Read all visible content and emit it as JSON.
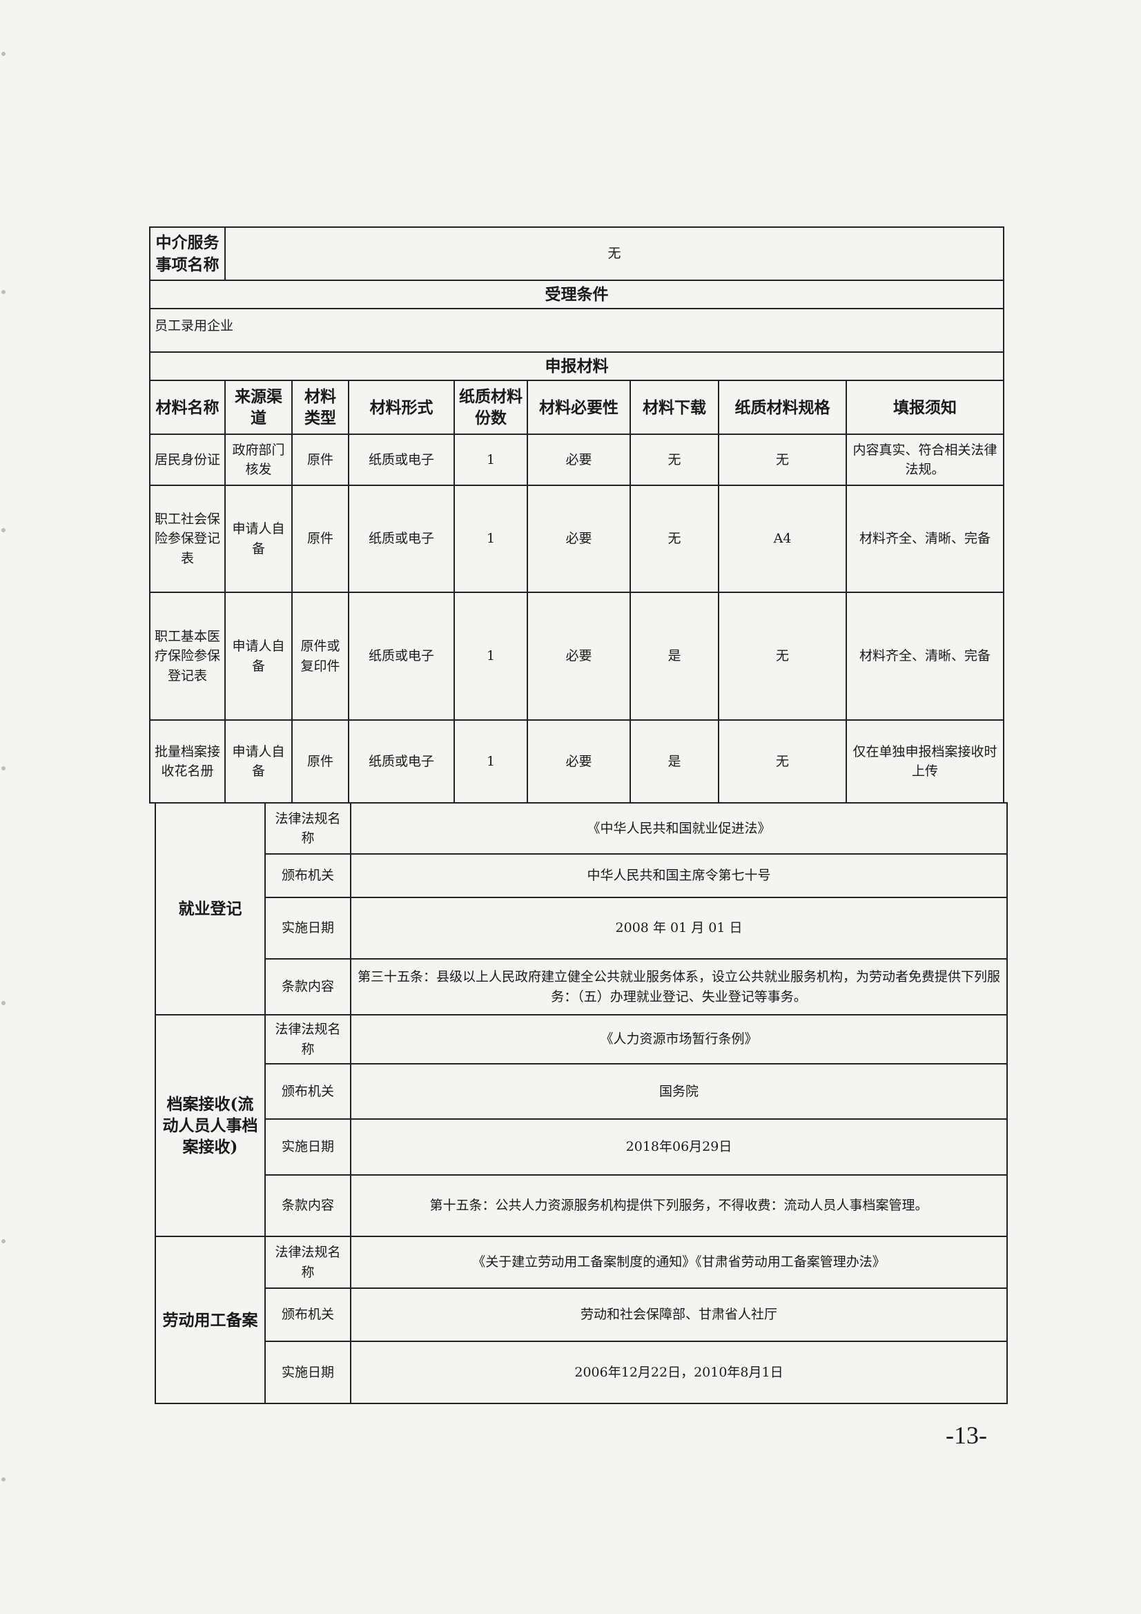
{
  "service_item": {
    "label": "中介服务事项名称",
    "value": "无"
  },
  "acceptance": {
    "title": "受理条件",
    "value": "员工录用企业"
  },
  "materials": {
    "title": "申报材料",
    "headers": [
      "材料名称",
      "来源渠道",
      "材料类型",
      "材料形式",
      "纸质材料份数",
      "材料必要性",
      "材料下载",
      "纸质材料规格",
      "填报须知"
    ],
    "rows": [
      [
        "居民身份证",
        "政府部门核发",
        "原件",
        "纸质或电子",
        "1",
        "必要",
        "无",
        "无",
        "内容真实、符合相关法律法规。"
      ],
      [
        "职工社会保险参保登记表",
        "申请人自备",
        "原件",
        "纸质或电子",
        "1",
        "必要",
        "无",
        "A4",
        "材料齐全、清晰、完备"
      ],
      [
        "职工基本医疗保险参保登记表",
        "申请人自备",
        "原件或复印件",
        "纸质或电子",
        "1",
        "必要",
        "是",
        "无",
        "材料齐全、清晰、完备"
      ],
      [
        "批量档案接收花名册",
        "申请人自备",
        "原件",
        "纸质或电子",
        "1",
        "必要",
        "是",
        "无",
        "仅在单独申报档案接收时上传"
      ]
    ]
  },
  "legal": [
    {
      "category": "就业登记",
      "rows": [
        {
          "label": "法律法规名称",
          "value": "《中华人民共和国就业促进法》"
        },
        {
          "label": "颁布机关",
          "value": "中华人民共和国主席令第七十号"
        },
        {
          "label": "实施日期",
          "value": "2008 年 01 月 01 日"
        },
        {
          "label": "条款内容",
          "value": "第三十五条：县级以上人民政府建立健全公共就业服务体系，设立公共就业服务机构，为劳动者免费提供下列服务：（五）办理就业登记、失业登记等事务。"
        }
      ]
    },
    {
      "category": "档案接收(流动人员人事档案接收)",
      "rows": [
        {
          "label": "法律法规名称",
          "value": "《人力资源市场暂行条例》"
        },
        {
          "label": "颁布机关",
          "value": "国务院"
        },
        {
          "label": "实施日期",
          "value": "2018年06月29日"
        },
        {
          "label": "条款内容",
          "value": "第十五条：公共人力资源服务机构提供下列服务，不得收费：流动人员人事档案管理。"
        }
      ]
    },
    {
      "category": "劳动用工备案",
      "rows": [
        {
          "label": "法律法规名称",
          "value": "《关于建立劳动用工备案制度的通知》《甘肃省劳动用工备案管理办法》"
        },
        {
          "label": "颁布机关",
          "value": "劳动和社会保障部、甘肃省人社厅"
        },
        {
          "label": "实施日期",
          "value": "2006年12月22日，2010年8月1日"
        }
      ]
    }
  ],
  "page_number": "-13-"
}
